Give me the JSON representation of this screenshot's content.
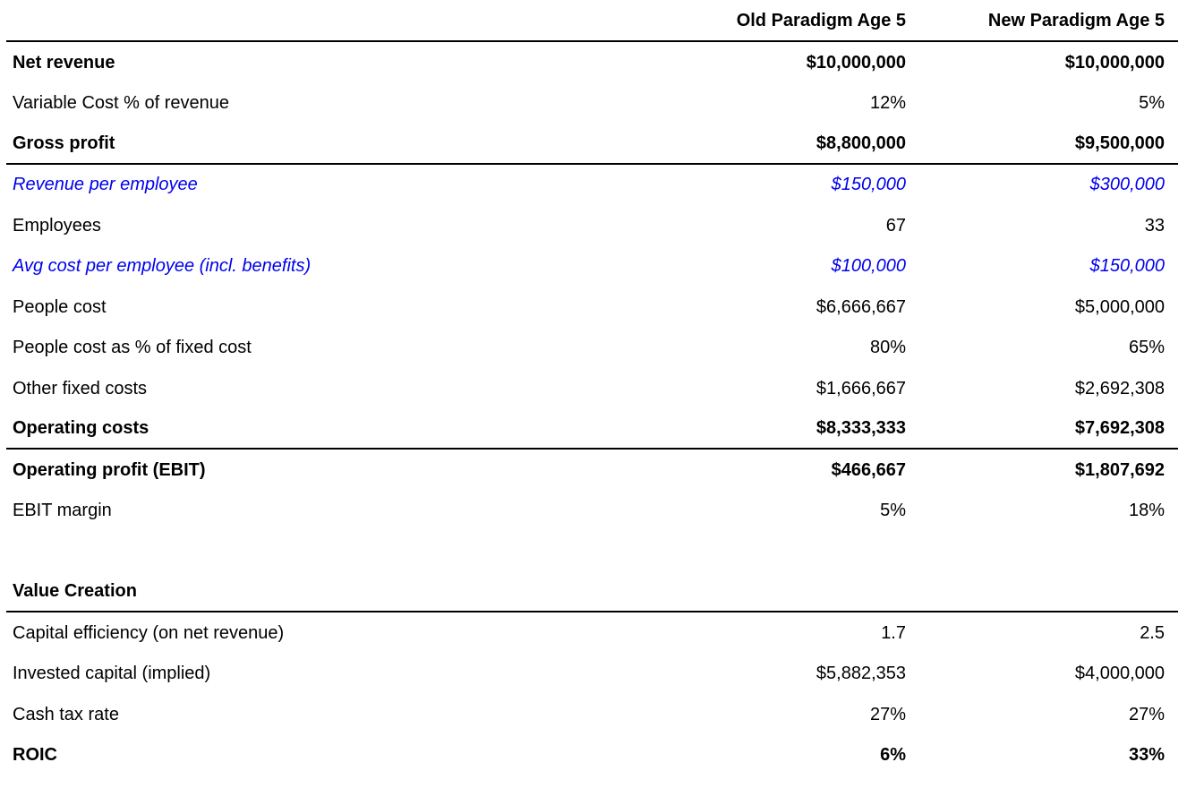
{
  "page": {
    "background_color": "#ffffff",
    "text_color": "#000000",
    "accent_blue": "#0000ee",
    "rule_color": "#000000"
  },
  "table": {
    "columns": {
      "label": "",
      "old": "Old Paradigm Age 5",
      "new": "New Paradigm Age 5"
    },
    "rows": [
      {
        "label": "Net revenue",
        "old": "$10,000,000",
        "new": "$10,000,000"
      },
      {
        "label": "Variable Cost % of revenue",
        "old": "12%",
        "new": "5%"
      },
      {
        "label": "Gross profit",
        "old": "$8,800,000",
        "new": "$9,500,000"
      },
      {
        "label": "Revenue per employee",
        "old": "$150,000",
        "new": "$300,000"
      },
      {
        "label": "Employees",
        "old": "67",
        "new": "33"
      },
      {
        "label": "Avg cost per employee (incl. benefits)",
        "old": "$100,000",
        "new": "$150,000"
      },
      {
        "label": "People cost",
        "old": "$6,666,667",
        "new": "$5,000,000"
      },
      {
        "label": "People cost as % of fixed cost",
        "old": "80%",
        "new": "65%"
      },
      {
        "label": "Other fixed costs",
        "old": "$1,666,667",
        "new": "$2,692,308"
      },
      {
        "label": "Operating costs",
        "old": "$8,333,333",
        "new": "$7,692,308"
      },
      {
        "label": "Operating profit (EBIT)",
        "old": "$466,667",
        "new": "$1,807,692"
      },
      {
        "label": "EBIT margin",
        "old": "5%",
        "new": "18%"
      },
      {
        "label": "Value Creation",
        "old": "",
        "new": ""
      },
      {
        "label": "Capital efficiency (on net revenue)",
        "old": "1.7",
        "new": "2.5"
      },
      {
        "label": "Invested capital (implied)",
        "old": "$5,882,353",
        "new": "$4,000,000"
      },
      {
        "label": "Cash tax rate",
        "old": "27%",
        "new": "27%"
      },
      {
        "label": "ROIC",
        "old": "6%",
        "new": "33%"
      }
    ]
  }
}
